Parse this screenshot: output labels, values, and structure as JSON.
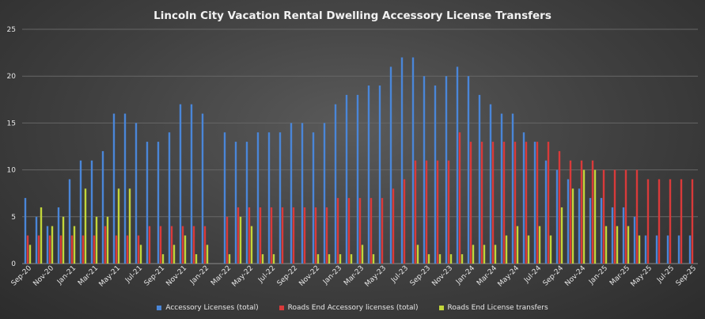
{
  "chart_data": {
    "type": "bar",
    "title": "Lincoln City Vacation Rental Dwelling Accessory License Transfers",
    "xlabel": "",
    "ylabel": "",
    "ylim": [
      0,
      25
    ],
    "yticks": [
      0,
      5,
      10,
      15,
      20,
      25
    ],
    "grid": true,
    "legend_position": "bottom",
    "categories": [
      "Sep-20",
      "Oct-20",
      "Nov-20",
      "Dec-20",
      "Jan-21",
      "Feb-21",
      "Mar-21",
      "Apr-21",
      "May-21",
      "Jun-21",
      "Jul-21",
      "Aug-21",
      "Sep-21",
      "Oct-21",
      "Nov-21",
      "Dec-21",
      "Jan-22",
      "Feb-22",
      "Mar-22",
      "Apr-22",
      "May-22",
      "Jun-22",
      "Jul-22",
      "Aug-22",
      "Sep-22",
      "Oct-22",
      "Nov-22",
      "Dec-22",
      "Jan-23",
      "Feb-23",
      "Mar-23",
      "Apr-23",
      "May-23",
      "Jun-23",
      "Jul-23",
      "Aug-23",
      "Sep-23",
      "Oct-23",
      "Nov-23",
      "Dec-23",
      "Jan-24",
      "Feb-24",
      "Mar-24",
      "Apr-24",
      "May-24",
      "Jun-24",
      "Jul-24",
      "Aug-24",
      "Sep-24",
      "Oct-24",
      "Nov-24",
      "Dec-24",
      "Jan-25",
      "Feb-25",
      "Mar-25",
      "Apr-25",
      "May-25",
      "Jun-25",
      "Jul-25",
      "Aug-25",
      "Sep-25"
    ],
    "x_tick_labels": [
      "Sep-20",
      "Nov-20",
      "Jan-21",
      "Mar-21",
      "May-21",
      "Jul-21",
      "Sep-21",
      "Nov-21",
      "Jan-22",
      "Mar-22",
      "May-22",
      "Jul-22",
      "Sep-22",
      "Nov-22",
      "Jan-23",
      "Mar-23",
      "May-23",
      "Jul-23",
      "Sep-23",
      "Nov-23",
      "Jan-24",
      "Mar-24",
      "May-24",
      "Jul-24",
      "Sep-24",
      "Nov-24",
      "Jan-25",
      "Mar-25",
      "May-25",
      "Jul-25",
      "Sep-25"
    ],
    "series": [
      {
        "name": "Accessory Licenses (total)",
        "color": "#4a86d8",
        "values": [
          7,
          5,
          4,
          6,
          9,
          11,
          11,
          12,
          16,
          16,
          15,
          13,
          13,
          14,
          17,
          17,
          16,
          null,
          14,
          13,
          13,
          14,
          14,
          14,
          15,
          15,
          14,
          15,
          17,
          18,
          18,
          19,
          19,
          21,
          22,
          22,
          20,
          19,
          20,
          21,
          20,
          18,
          17,
          16,
          16,
          14,
          13,
          11,
          10,
          9,
          8,
          7,
          7,
          6,
          6,
          5,
          3,
          3,
          3,
          3,
          3
        ]
      },
      {
        "name": "Roads End Accessory licenses (total)",
        "color": "#d93a3a",
        "values": [
          3,
          3,
          3,
          3,
          3,
          3,
          3,
          4,
          3,
          3,
          3,
          4,
          4,
          4,
          4,
          4,
          4,
          null,
          5,
          6,
          6,
          6,
          6,
          6,
          6,
          6,
          6,
          6,
          7,
          7,
          7,
          7,
          7,
          8,
          9,
          11,
          11,
          11,
          11,
          14,
          13,
          13,
          13,
          13,
          13,
          13,
          13,
          13,
          12,
          11,
          11,
          11,
          10,
          10,
          10,
          10,
          9,
          9,
          9,
          9,
          9
        ]
      },
      {
        "name": "Roads End License transfers",
        "color": "#c2d63a",
        "values": [
          2,
          6,
          4,
          5,
          4,
          8,
          5,
          5,
          8,
          8,
          2,
          null,
          1,
          2,
          3,
          1,
          2,
          null,
          1,
          5,
          4,
          1,
          1,
          null,
          null,
          null,
          1,
          1,
          1,
          1,
          2,
          1,
          null,
          null,
          null,
          2,
          1,
          1,
          1,
          1,
          2,
          2,
          2,
          3,
          4,
          3,
          4,
          3,
          6,
          8,
          10,
          10,
          4,
          4,
          4,
          3,
          null,
          null,
          null,
          null,
          null
        ]
      }
    ]
  }
}
